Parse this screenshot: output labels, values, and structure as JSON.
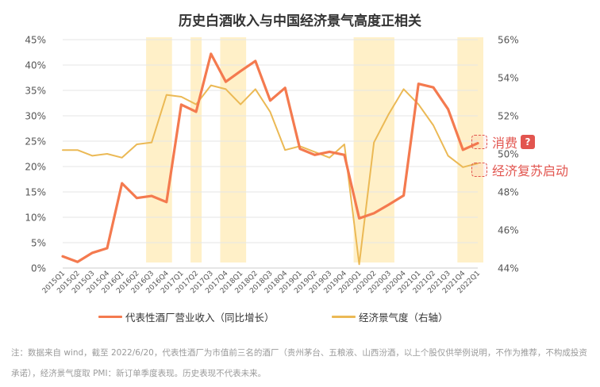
{
  "chart_data": {
    "type": "line",
    "title": "历史白酒收入与中国经济景气高度正相关",
    "categories": [
      "2015Q1",
      "2015Q2",
      "2015Q3",
      "2015Q4",
      "2016Q1",
      "2016Q2",
      "2016Q3",
      "2016Q4",
      "2017Q1",
      "2017Q2",
      "2017Q3",
      "2017Q4",
      "2018Q1",
      "2018Q2",
      "2018Q3",
      "2018Q4",
      "2019Q1",
      "2019Q2",
      "2019Q3",
      "2019Q4",
      "2020Q1",
      "2020Q2",
      "2020Q3",
      "2020Q4",
      "2021Q1",
      "2021Q2",
      "2021Q3",
      "2021Q4",
      "2022Q1"
    ],
    "series": [
      {
        "name": "代表性酒厂营业收入（同比增长）",
        "axis": "left",
        "color": "#f47a4f",
        "values": [
          2.3,
          1.2,
          3.0,
          3.9,
          16.7,
          13.8,
          14.2,
          13.0,
          32.2,
          30.8,
          42.2,
          36.7,
          38.8,
          40.8,
          33.0,
          35.5,
          23.5,
          22.3,
          22.9,
          22.3,
          9.8,
          10.8,
          12.5,
          14.3,
          36.3,
          35.6,
          31.3,
          23.3,
          24.6
        ]
      },
      {
        "name": "经济景气度（右轴）",
        "axis": "right",
        "color": "#ebb955",
        "values": [
          50.2,
          50.2,
          49.9,
          50.0,
          49.8,
          50.5,
          50.6,
          53.1,
          53.0,
          52.6,
          53.6,
          53.4,
          52.6,
          53.4,
          52.2,
          50.2,
          50.4,
          50.1,
          49.8,
          50.5,
          44.2,
          50.6,
          52.1,
          53.4,
          52.6,
          51.5,
          49.9,
          49.3,
          49.5
        ]
      }
    ],
    "shaded_ranges": [
      [
        6,
        7
      ],
      [
        9,
        9
      ],
      [
        11,
        12
      ],
      [
        20,
        22
      ],
      [
        27,
        28
      ]
    ],
    "shade_color": "#fff0c8",
    "y_left": {
      "min": 0,
      "max": 45,
      "step": 5,
      "ticks": [
        "0%",
        "5%",
        "10%",
        "15%",
        "20%",
        "25%",
        "30%",
        "35%",
        "40%",
        "45%"
      ]
    },
    "y_right": {
      "min": 44,
      "max": 56,
      "step": 2,
      "ticks": [
        "44%",
        "46%",
        "48%",
        "50%",
        "52%",
        "54%",
        "56%"
      ]
    },
    "grid": true
  },
  "annotations": {
    "consumption": "消费",
    "recovery": "经济复苏启动",
    "badge": "?"
  },
  "note": "注：数据来自 wind，截至 2022/6/20，代表性酒厂为市值前三名的酒厂（贵州茅台、五粮液、山西汾酒，以上个股仅供举例说明，不作为推荐，不构成投资承诺），经济景气度取 PMI：新订单季度表现。历史表现不代表未来。"
}
